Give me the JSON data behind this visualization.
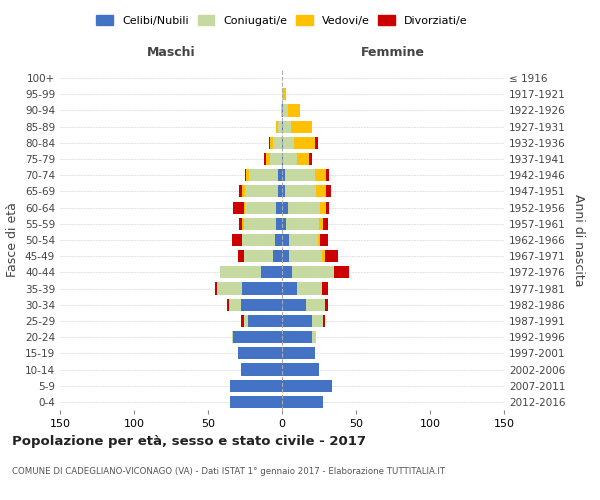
{
  "age_groups": [
    "0-4",
    "5-9",
    "10-14",
    "15-19",
    "20-24",
    "25-29",
    "30-34",
    "35-39",
    "40-44",
    "45-49",
    "50-54",
    "55-59",
    "60-64",
    "65-69",
    "70-74",
    "75-79",
    "80-84",
    "85-89",
    "90-94",
    "95-99",
    "100+"
  ],
  "birth_years": [
    "2012-2016",
    "2007-2011",
    "2002-2006",
    "1997-2001",
    "1992-1996",
    "1987-1991",
    "1982-1986",
    "1977-1981",
    "1972-1976",
    "1967-1971",
    "1962-1966",
    "1957-1961",
    "1952-1956",
    "1947-1951",
    "1942-1946",
    "1937-1941",
    "1932-1936",
    "1927-1931",
    "1922-1926",
    "1917-1921",
    "≤ 1916"
  ],
  "maschi": {
    "celibi": [
      35,
      35,
      28,
      30,
      33,
      23,
      28,
      27,
      14,
      6,
      5,
      4,
      4,
      3,
      3,
      0,
      0,
      0,
      0,
      0,
      0
    ],
    "coniugati": [
      0,
      0,
      0,
      0,
      1,
      3,
      8,
      17,
      28,
      20,
      22,
      22,
      21,
      22,
      19,
      8,
      6,
      3,
      1,
      0,
      0
    ],
    "vedovi": [
      0,
      0,
      0,
      0,
      0,
      0,
      0,
      0,
      0,
      0,
      0,
      1,
      1,
      2,
      2,
      3,
      2,
      1,
      0,
      0,
      0
    ],
    "divorziati": [
      0,
      0,
      0,
      0,
      0,
      2,
      1,
      1,
      0,
      4,
      7,
      2,
      7,
      2,
      1,
      1,
      1,
      0,
      0,
      0,
      0
    ]
  },
  "femmine": {
    "nubili": [
      28,
      34,
      25,
      22,
      20,
      20,
      16,
      10,
      7,
      5,
      5,
      3,
      4,
      2,
      2,
      1,
      1,
      1,
      1,
      0,
      0
    ],
    "coniugate": [
      0,
      0,
      0,
      0,
      3,
      8,
      13,
      17,
      28,
      22,
      19,
      22,
      22,
      21,
      20,
      9,
      7,
      5,
      3,
      1,
      0
    ],
    "vedove": [
      0,
      0,
      0,
      0,
      0,
      0,
      0,
      0,
      0,
      2,
      2,
      3,
      4,
      7,
      8,
      8,
      14,
      14,
      8,
      2,
      0
    ],
    "divorziate": [
      0,
      0,
      0,
      0,
      0,
      1,
      2,
      4,
      10,
      9,
      5,
      3,
      2,
      3,
      2,
      2,
      2,
      0,
      0,
      0,
      0
    ]
  },
  "colors": {
    "celibi": "#4472c4",
    "coniugati": "#c5d9a0",
    "vedovi": "#ffc000",
    "divorziati": "#cc0000"
  },
  "xlim": 150,
  "title": "Popolazione per età, sesso e stato civile - 2017",
  "subtitle": "COMUNE DI CADEGLIANO-VICONAGO (VA) - Dati ISTAT 1° gennaio 2017 - Elaborazione TUTTITALIA.IT",
  "ylabel": "Fasce di età",
  "ylabel2": "Anni di nascita",
  "xlabel_maschi": "Maschi",
  "xlabel_femmine": "Femmine",
  "legend_labels": [
    "Celibi/Nubili",
    "Coniugati/e",
    "Vedovi/e",
    "Divorziati/e"
  ],
  "background_color": "#ffffff",
  "xticks": [
    -150,
    -100,
    -50,
    0,
    50,
    100,
    150
  ]
}
